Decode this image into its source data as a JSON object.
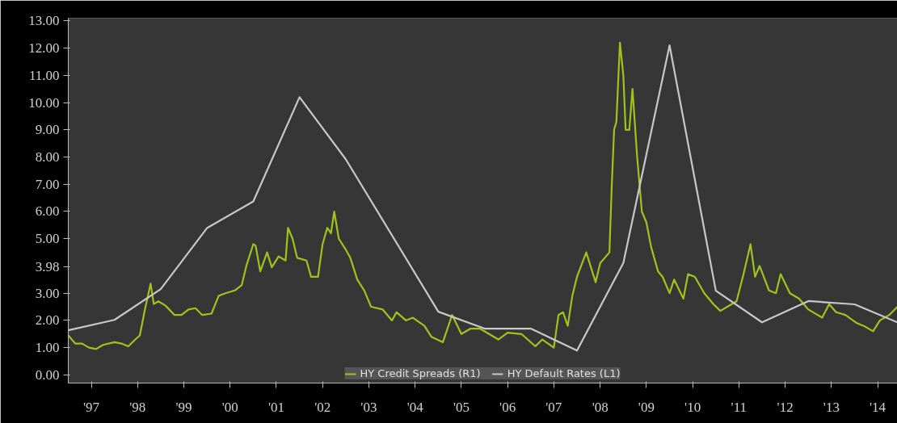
{
  "chart_data": {
    "type": "line",
    "series": [
      {
        "name": "HY Credit Spreads (R1)",
        "color": "#a4c21c",
        "x": [
          "1997-01-01",
          "1997-02-25",
          "1997-04-20",
          "1997-06-14",
          "1997-08-08",
          "1997-10-02",
          "1998-01-01",
          "1998-02-25",
          "1998-04-20",
          "1998-06-14",
          "1998-07-20",
          "1998-08-29",
          "1998-10-13",
          "1998-11-07",
          "1998-12-13",
          "1999-02-06",
          "1999-04-20",
          "1999-06-14",
          "1999-08-08",
          "1999-10-02",
          "1999-11-25",
          "2000-02-06",
          "2000-04-02",
          "2000-05-27",
          "2000-08-08",
          "2000-10-02",
          "2000-11-07",
          "2001-01-01",
          "2001-01-19",
          "2001-02-25",
          "2001-04-20",
          "2001-05-27",
          "2001-07-20",
          "2001-09-13",
          "2001-10-02",
          "2001-11-07",
          "2001-12-13",
          "2002-02-25",
          "2002-04-02",
          "2002-05-27",
          "2002-07-02",
          "2002-08-08",
          "2002-09-06",
          "2002-10-02",
          "2002-11-07",
          "2003-01-01",
          "2003-02-06",
          "2003-04-02",
          "2003-05-27",
          "2003-07-20",
          "2003-10-20",
          "2004-01-01",
          "2004-02-06",
          "2004-04-20",
          "2004-06-14",
          "2004-09-13",
          "2004-11-07",
          "2005-02-06",
          "2005-04-20",
          "2005-07-02",
          "2005-09-13",
          "2005-11-25",
          "2006-04-20",
          "2006-07-02",
          "2006-10-20",
          "2007-02-06",
          "2007-04-02",
          "2007-07-02",
          "2007-08-08",
          "2007-09-13",
          "2007-10-20",
          "2007-11-25",
          "2008-01-01",
          "2008-03-14",
          "2008-05-27",
          "2008-07-02",
          "2008-09-13",
          "2008-10-02",
          "2008-10-20",
          "2008-11-07",
          "2008-12-05",
          "2009-01-01",
          "2009-01-19",
          "2009-02-17",
          "2009-03-14",
          "2009-04-20",
          "2009-05-27",
          "2009-07-02",
          "2009-08-08",
          "2009-10-02",
          "2009-11-07",
          "2010-01-01",
          "2010-02-06",
          "2010-04-20",
          "2010-05-27",
          "2010-07-20",
          "2010-10-02",
          "2010-12-13",
          "2011-02-06",
          "2011-04-02",
          "2011-06-14",
          "2011-08-08",
          "2011-10-02",
          "2011-11-07",
          "2011-12-13",
          "2012-02-25",
          "2012-04-20",
          "2012-05-27",
          "2012-08-08",
          "2012-10-20",
          "2013-01-01",
          "2013-04-20",
          "2013-06-14",
          "2013-08-08",
          "2013-10-20",
          "2014-01-19",
          "2014-03-14",
          "2014-05-27",
          "2014-07-20",
          "2014-10-02",
          "2014-12-05"
        ],
        "values": [
          1.45,
          1.15,
          1.15,
          1.0,
          0.95,
          1.1,
          1.2,
          1.15,
          1.05,
          1.3,
          1.45,
          2.4,
          3.35,
          2.6,
          2.7,
          2.55,
          2.2,
          2.2,
          2.4,
          2.45,
          2.2,
          2.25,
          2.9,
          3.0,
          3.1,
          3.3,
          4.0,
          4.8,
          4.75,
          3.8,
          4.5,
          3.95,
          4.35,
          4.2,
          5.4,
          5.0,
          4.3,
          4.2,
          3.6,
          3.6,
          4.8,
          5.4,
          5.2,
          6.0,
          5.0,
          4.6,
          4.3,
          3.5,
          3.1,
          2.5,
          2.4,
          2.0,
          2.3,
          2.0,
          2.1,
          1.8,
          1.4,
          1.2,
          2.2,
          1.5,
          1.7,
          1.7,
          1.3,
          1.55,
          1.5,
          1.05,
          1.3,
          1.0,
          2.2,
          2.3,
          1.8,
          2.9,
          3.6,
          4.5,
          3.4,
          4.1,
          4.5,
          7.0,
          9.0,
          9.3,
          12.2,
          11.0,
          9.0,
          9.0,
          10.5,
          8.0,
          6.0,
          5.6,
          4.7,
          3.8,
          3.6,
          3.0,
          3.5,
          2.8,
          3.7,
          3.6,
          3.0,
          2.6,
          2.35,
          2.5,
          2.7,
          3.7,
          4.8,
          3.6,
          4.0,
          3.1,
          3.0,
          3.7,
          3.0,
          2.8,
          2.4,
          2.1,
          2.6,
          2.3,
          2.2,
          1.9,
          1.8,
          1.6,
          2.0,
          2.2,
          2.5
        ]
      },
      {
        "name": "HY Default Rates (L1)",
        "color": "#c8c8c8",
        "x": [
          "1997-01-01",
          "1998-01-01",
          "1999-01-01",
          "2000-01-01",
          "2001-01-01",
          "2002-01-01",
          "2003-01-01",
          "2005-01-01",
          "2006-01-01",
          "2007-01-01",
          "2008-01-01",
          "2009-01-01",
          "2010-01-01",
          "2011-01-01",
          "2012-01-01",
          "2013-01-01",
          "2014-01-01",
          "2014-12-05"
        ],
        "values": [
          1.64,
          2.02,
          3.15,
          5.39,
          6.37,
          10.2,
          7.92,
          2.32,
          1.7,
          1.7,
          0.89,
          4.11,
          12.1,
          3.09,
          1.93,
          2.71,
          2.59,
          1.93
        ]
      }
    ],
    "xlim": [
      "1997-01-01",
      "2014-12-05"
    ],
    "xticks": [
      {
        "value": "1997-07-02",
        "label": "'97"
      },
      {
        "value": "1998-07-02",
        "label": "'98"
      },
      {
        "value": "1999-07-02",
        "label": "'99"
      },
      {
        "value": "2000-07-02",
        "label": "'00"
      },
      {
        "value": "2001-07-02",
        "label": "'01"
      },
      {
        "value": "2002-07-02",
        "label": "'02"
      },
      {
        "value": "2003-07-02",
        "label": "'03"
      },
      {
        "value": "2004-07-02",
        "label": "'04"
      },
      {
        "value": "2005-07-02",
        "label": "'05"
      },
      {
        "value": "2006-07-02",
        "label": "'06"
      },
      {
        "value": "2007-07-02",
        "label": "'07"
      },
      {
        "value": "2008-07-02",
        "label": "'08"
      },
      {
        "value": "2009-07-02",
        "label": "'09"
      },
      {
        "value": "2010-07-02",
        "label": "'10"
      },
      {
        "value": "2011-07-02",
        "label": "'11"
      },
      {
        "value": "2012-07-02",
        "label": "'12"
      },
      {
        "value": "2013-07-02",
        "label": "'13"
      },
      {
        "value": "2014-07-02",
        "label": "'14"
      }
    ],
    "ylim": [
      -0.3,
      13.1
    ],
    "yticks": [
      {
        "value": 0,
        "label": "0.00"
      },
      {
        "value": 1,
        "label": "1.00"
      },
      {
        "value": 2,
        "label": "2.00"
      },
      {
        "value": 3,
        "label": "3.00"
      },
      {
        "value": 3.98,
        "label": "3.98"
      },
      {
        "value": 5,
        "label": "5.00"
      },
      {
        "value": 6,
        "label": "6.00"
      },
      {
        "value": 7,
        "label": "7.00"
      },
      {
        "value": 8,
        "label": "8.00"
      },
      {
        "value": 9,
        "label": "9.00"
      },
      {
        "value": 10,
        "label": "10.00"
      },
      {
        "value": 11,
        "label": "11.00"
      },
      {
        "value": 12,
        "label": "12.00"
      },
      {
        "value": 13,
        "label": "13.00"
      }
    ],
    "grid": false,
    "legend": "bottom",
    "marker": "none",
    "line_style": "solid"
  }
}
